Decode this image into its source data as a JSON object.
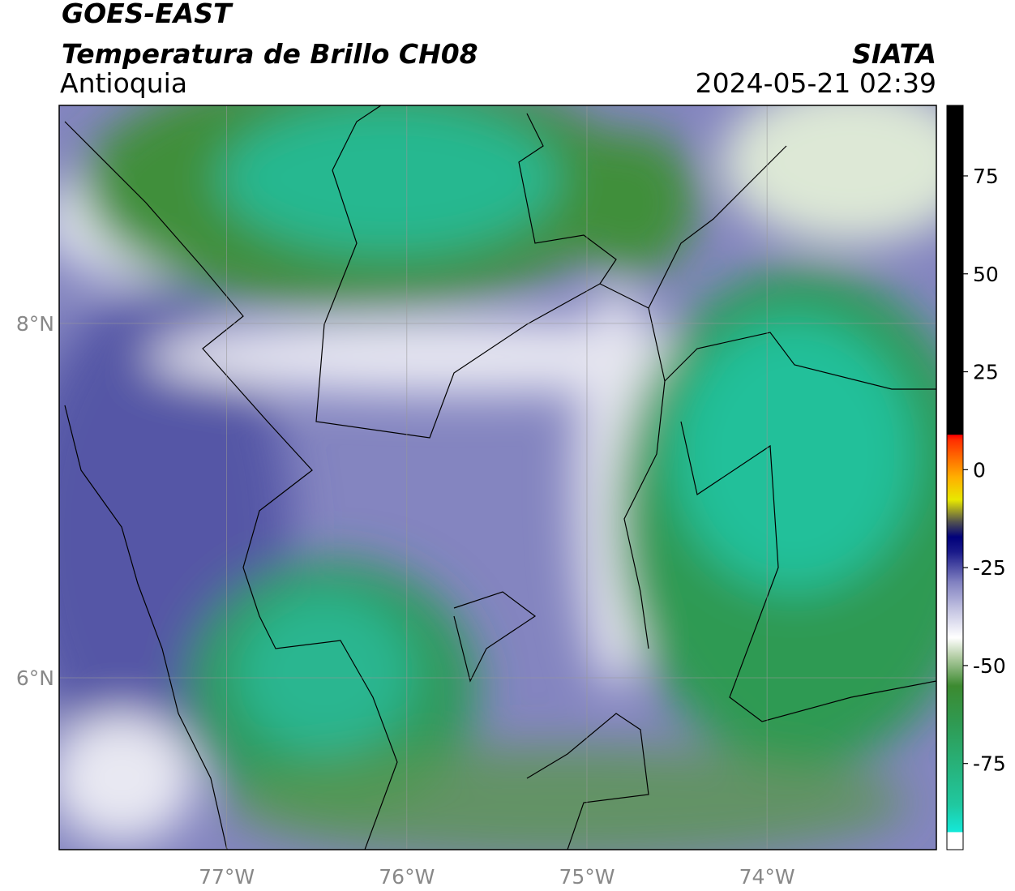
{
  "header": {
    "satellite": "GOES-EAST",
    "product": "Temperatura de Brillo CH08",
    "region": "Antioquia",
    "source": "SIATA",
    "datetime": "2024-05-21 02:39"
  },
  "map": {
    "xlim": [
      -77.93,
      -73.06
    ],
    "ylim": [
      5.03,
      9.23
    ],
    "xticks": [
      {
        "value": -77,
        "label": "77°W"
      },
      {
        "value": -76,
        "label": "76°W"
      },
      {
        "value": -75,
        "label": "75°W"
      },
      {
        "value": -74,
        "label": "74°W"
      }
    ],
    "yticks": [
      {
        "value": 8,
        "label": "8°N"
      },
      {
        "value": 6,
        "label": "6°N"
      }
    ]
  },
  "colorbar": {
    "lim": [
      -97,
      93
    ],
    "ticks": [
      75,
      50,
      25,
      0,
      -25,
      -50,
      -75
    ]
  }
}
